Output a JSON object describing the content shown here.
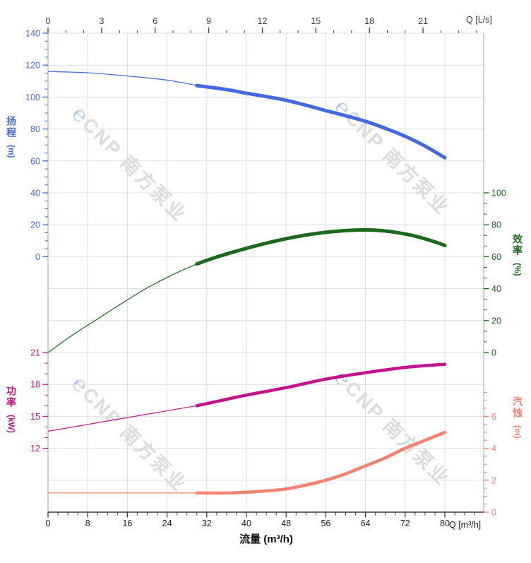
{
  "watermark": {
    "logo": "℮",
    "text": "CNP 南方泵业"
  },
  "chart_data": {
    "type": "line",
    "description": "Centrifugal pump performance curves: head, efficiency, power and NPSH versus flow",
    "colors": {
      "grid": "#DDDDDD",
      "border": "#AFAFAF",
      "axis": "#3A3A3A",
      "head": "#4169E1",
      "efficiency": "#1A691C",
      "power": "#C4148C",
      "npsh": "#F4826E"
    },
    "x_axes": {
      "top": {
        "label": "Q [L/s]",
        "major_ticks": [
          0,
          3,
          6,
          9,
          12,
          15,
          18,
          21
        ],
        "minor_step": 1,
        "minor_max": 24,
        "range": [
          0,
          24.4
        ]
      },
      "bottom": {
        "label": "Q [m³/h]",
        "title": "流量 (m³/h)",
        "major_ticks": [
          0,
          8,
          16,
          24,
          32,
          40,
          48,
          56,
          64,
          72,
          80
        ],
        "minor_step": 2,
        "minor_max": 86,
        "range": [
          0,
          87.8
        ]
      }
    },
    "y_axes": {
      "head": {
        "title": "扬程",
        "unit": "(m)",
        "major_ticks": [
          140,
          120,
          100,
          80,
          60,
          40,
          20,
          0
        ],
        "minors_between": 3,
        "range": [
          0,
          140
        ]
      },
      "efficiency": {
        "title": "效率",
        "unit": "(%)",
        "major_ticks": [
          100,
          80,
          60,
          40,
          20,
          0
        ],
        "minors_between": 2,
        "range": [
          0,
          100
        ]
      },
      "power": {
        "title": "功率",
        "unit": "(kW)",
        "major_ticks": [
          21,
          18,
          15,
          12
        ],
        "minors_between": 2,
        "range": [
          12,
          21
        ]
      },
      "npsh": {
        "title": "汽蚀",
        "unit": "(m)",
        "major_ticks": [
          6,
          4,
          2,
          0
        ],
        "minors_between": 3,
        "extra_minors": [
          6.5,
          7,
          7.5
        ],
        "range": [
          0,
          6
        ]
      }
    },
    "series": [
      {
        "name": "head",
        "axis": "head",
        "color": "#4169E1",
        "thick_width": 5,
        "thin": [
          [
            0,
            116
          ],
          [
            8,
            115.2
          ],
          [
            16,
            113.2
          ],
          [
            24,
            110.6
          ],
          [
            30,
            107.2
          ]
        ],
        "thick": [
          [
            30,
            107.2
          ],
          [
            36,
            104.7
          ],
          [
            40,
            102.4
          ],
          [
            44,
            100.3
          ],
          [
            48,
            98
          ],
          [
            52,
            94.9
          ],
          [
            56,
            91.5
          ],
          [
            60,
            88.3
          ],
          [
            64,
            84.8
          ],
          [
            68,
            80.4
          ],
          [
            72,
            75.4
          ],
          [
            76,
            69.3
          ],
          [
            80,
            62
          ]
        ]
      },
      {
        "name": "efficiency",
        "axis": "efficiency",
        "color": "#1A691C",
        "thick_width": 5,
        "thin": [
          [
            0,
            0
          ],
          [
            5,
            11
          ],
          [
            10,
            21
          ],
          [
            15,
            31
          ],
          [
            20,
            40.5
          ],
          [
            25,
            48.5
          ],
          [
            30,
            55.5
          ]
        ],
        "thick": [
          [
            30,
            55.5
          ],
          [
            34,
            59.8
          ],
          [
            38,
            63.5
          ],
          [
            42,
            66.9
          ],
          [
            46,
            69.9
          ],
          [
            50,
            72.5
          ],
          [
            54,
            74.5
          ],
          [
            58,
            75.9
          ],
          [
            62,
            76.7
          ],
          [
            66,
            76.6
          ],
          [
            70,
            75.3
          ],
          [
            74,
            72.9
          ],
          [
            78,
            69.3
          ],
          [
            80,
            67
          ]
        ]
      },
      {
        "name": "power",
        "axis": "power",
        "color": "#C4148C",
        "thick_width": 4.5,
        "thin": [
          [
            0,
            13.6
          ],
          [
            10,
            14.4
          ],
          [
            20,
            15.2
          ],
          [
            30,
            16
          ]
        ],
        "thick": [
          [
            30,
            16
          ],
          [
            36,
            16.6
          ],
          [
            40,
            17
          ],
          [
            48,
            17.7
          ],
          [
            56,
            18.5
          ],
          [
            64,
            19.1
          ],
          [
            72,
            19.6
          ],
          [
            80,
            19.9
          ]
        ]
      },
      {
        "name": "npsh",
        "axis": "npsh",
        "color": "#F4826E",
        "thick_width": 4.5,
        "thin": [
          [
            0,
            1.2
          ],
          [
            15,
            1.2
          ],
          [
            30,
            1.2
          ]
        ],
        "thick": [
          [
            30,
            1.2
          ],
          [
            36,
            1.2
          ],
          [
            40,
            1.25
          ],
          [
            44,
            1.33
          ],
          [
            48,
            1.45
          ],
          [
            52,
            1.7
          ],
          [
            56,
            2.0
          ],
          [
            60,
            2.4
          ],
          [
            64,
            2.9
          ],
          [
            68,
            3.4
          ],
          [
            72,
            4.0
          ],
          [
            76,
            4.5
          ],
          [
            80,
            5.0
          ]
        ]
      }
    ]
  }
}
